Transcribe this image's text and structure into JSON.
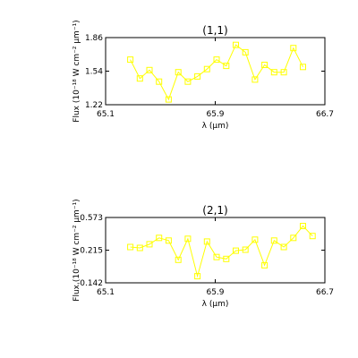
{
  "chart_data": [
    {
      "type": "line",
      "title": "(1,1)",
      "xlabel": "λ (μm)",
      "ylabel": "Flux (10⁻¹⁸ W cm⁻² μm⁻¹)",
      "xlim": [
        65.1,
        66.7
      ],
      "ylim": [
        1.22,
        1.86
      ],
      "xticks": [
        "65.1",
        "65.9",
        "66.7"
      ],
      "xtick_values": [
        65.1,
        65.9,
        66.7
      ],
      "yticks": [
        "1.22",
        "1.54",
        "1.86"
      ],
      "ytick_values": [
        1.22,
        1.54,
        1.86
      ],
      "series": [
        {
          "marker": "square",
          "color": "#ffff00",
          "x": [
            65.28,
            65.35,
            65.42,
            65.49,
            65.56,
            65.63,
            65.7,
            65.77,
            65.84,
            65.91,
            65.98,
            66.05,
            66.12,
            66.19,
            66.26,
            66.33,
            66.4,
            66.47,
            66.54
          ],
          "values": [
            1.65,
            1.47,
            1.55,
            1.44,
            1.27,
            1.53,
            1.44,
            1.49,
            1.56,
            1.65,
            1.59,
            1.79,
            1.72,
            1.46,
            1.6,
            1.53,
            1.53,
            1.76,
            1.58
          ]
        }
      ]
    },
    {
      "type": "line",
      "title": "(2,1)",
      "xlabel": "λ (μm)",
      "ylabel": "Flux (10⁻¹⁸ W cm⁻² μm⁻¹)",
      "xlim": [
        65.1,
        66.7
      ],
      "ylim": [
        -0.142,
        0.573
      ],
      "xticks": [
        "65.1",
        "65.9",
        "66.7"
      ],
      "xtick_values": [
        65.1,
        65.9,
        66.7
      ],
      "yticks": [
        "-0.142",
        "0.215",
        "0.573"
      ],
      "ytick_values": [
        -0.142,
        0.215,
        0.573
      ],
      "series": [
        {
          "marker": "square",
          "color": "#ffff00",
          "x": [
            65.28,
            65.35,
            65.42,
            65.49,
            65.56,
            65.63,
            65.7,
            65.77,
            65.84,
            65.91,
            65.98,
            66.05,
            66.12,
            66.19,
            66.26,
            66.33,
            66.4,
            66.47,
            66.54,
            66.61
          ],
          "values": [
            0.25,
            0.24,
            0.28,
            0.35,
            0.32,
            0.11,
            0.34,
            -0.07,
            0.31,
            0.14,
            0.12,
            0.21,
            0.22,
            0.33,
            0.05,
            0.32,
            0.25,
            0.35,
            0.48,
            0.37
          ]
        }
      ]
    }
  ]
}
